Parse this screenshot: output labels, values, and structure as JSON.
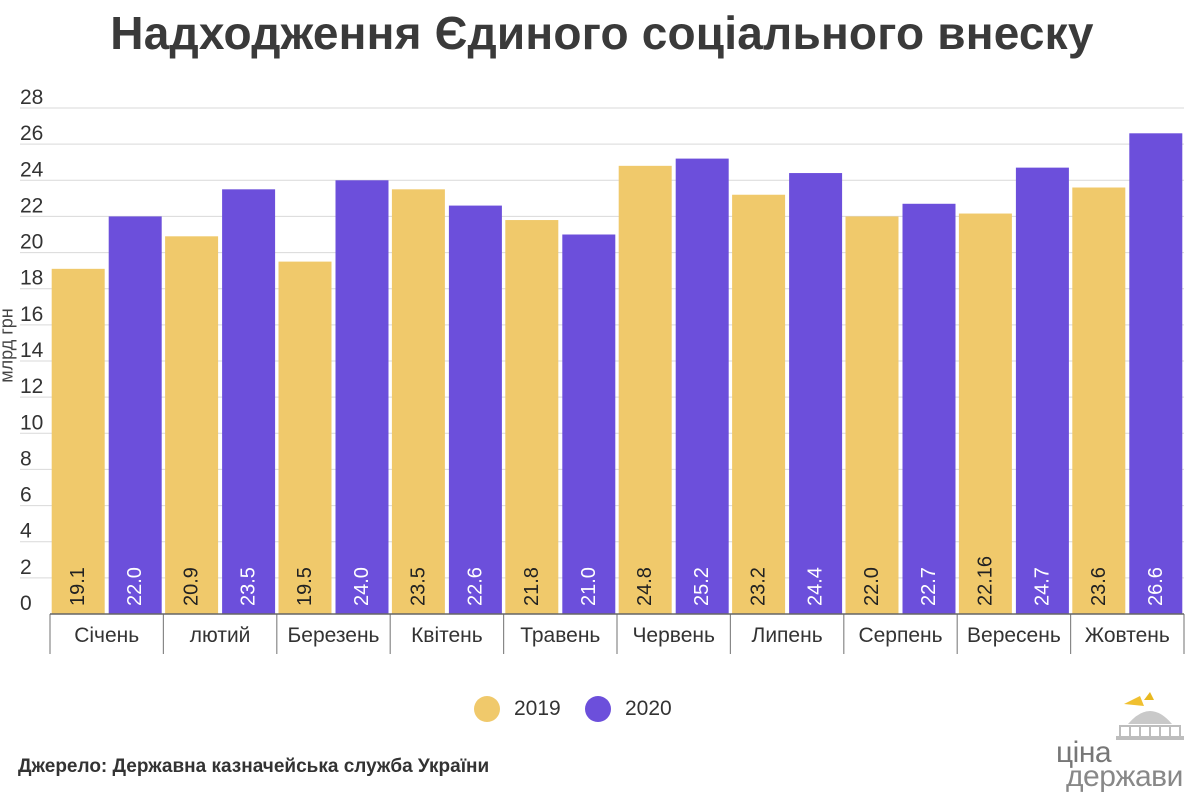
{
  "chart_data": {
    "type": "bar",
    "title": "Надходження Єдиного соціального внеску",
    "ylabel": "млрд грн",
    "ylim": [
      0,
      28
    ],
    "yticks": [
      "0",
      "2",
      "4",
      "6",
      "8",
      "10",
      "12",
      "14",
      "16",
      "18",
      "20",
      "22",
      "24",
      "26",
      "28"
    ],
    "grid": true,
    "legend_position": "bottom",
    "categories": [
      "Січень",
      "лютий",
      "Березень",
      "Квітень",
      "Травень",
      "Червень",
      "Липень",
      "Серпень",
      "Вересень",
      "Жовтень"
    ],
    "series": [
      {
        "name": "2019",
        "color": "#f0c96b",
        "values": [
          19.1,
          20.9,
          19.5,
          23.5,
          21.8,
          24.8,
          23.2,
          22.0,
          22.16,
          23.6
        ],
        "labels": [
          "19.1",
          "20.9",
          "19.5",
          "23.5",
          "21.8",
          "24.8",
          "23.2",
          "22.0",
          "22.16",
          "23.6"
        ]
      },
      {
        "name": "2020",
        "color": "#6c4fdb",
        "values": [
          22.0,
          23.5,
          24.0,
          22.6,
          21.0,
          25.2,
          24.4,
          22.7,
          24.7,
          26.6
        ],
        "labels": [
          "22.0",
          "23.5",
          "24.0",
          "22.6",
          "21.0",
          "25.2",
          "24.4",
          "22.7",
          "24.7",
          "26.6"
        ]
      }
    ]
  },
  "source": "Джерело: Державна казначейська служба України",
  "logo": {
    "top": "ціна",
    "bottom": "держави",
    "icon": "parliament-dome-icon"
  }
}
